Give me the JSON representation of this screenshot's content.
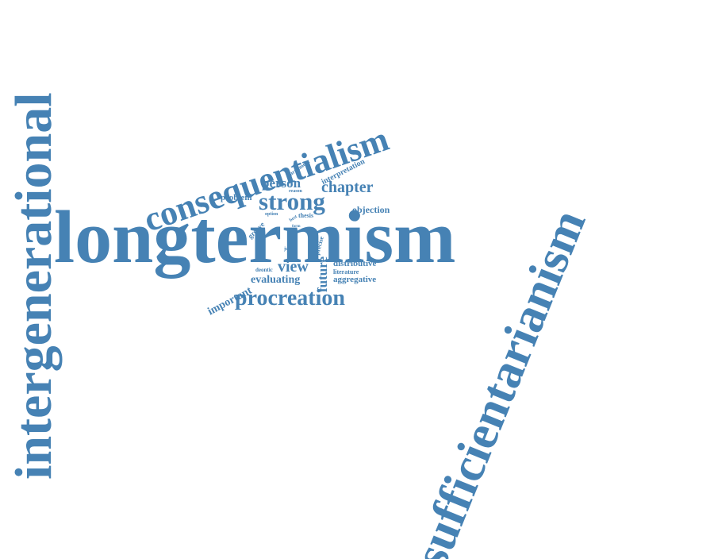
{
  "cloud": {
    "color": "#4682b4",
    "words": {
      "longtermism": "longtermism",
      "sufficientarianism": "sufficientarianism",
      "intergenerational": "intergenerational",
      "consequentialism": "consequentialism",
      "procreation": "procreation",
      "strong": "strong",
      "chapter": "chapter",
      "person": "person",
      "important": "important",
      "view": "view",
      "future": "future",
      "evaluating": "evaluating",
      "objection": "objection",
      "problem": "problem",
      "interpretation": "interpretation",
      "distributive": "distributive",
      "aggregative": "aggregative",
      "greave": "greave",
      "argument": "argument",
      "precise": "precise",
      "thesis": "thesis",
      "literature": "literature",
      "deontic": "deontic",
      "justice": "justice",
      "option": "option",
      "reason": "reason",
      "best": "best",
      "many": "many",
      "form": "form"
    }
  }
}
